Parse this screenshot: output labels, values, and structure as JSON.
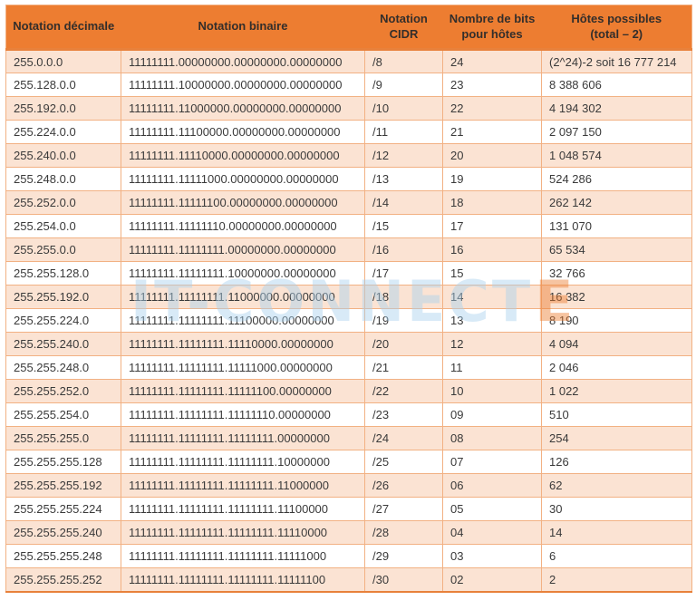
{
  "colors": {
    "header_bg": "#ED7D31",
    "header_text": "#332E2B",
    "cell_text": "#3A3A3A",
    "alt_row_bg": "#FBE3D3",
    "grid_line": "#F2B183",
    "frame_line": "#E8813B",
    "watermark_blue": "#A9D2EE",
    "watermark_orange": "#ED7D31"
  },
  "watermark": {
    "text": "IT-CONNECT",
    "logo_glyph": "E"
  },
  "table": {
    "headers": [
      "Notation décimale",
      "Notation binaire",
      "Notation\nCIDR",
      "Nombre de bits\npour hôtes",
      "Hôtes possibles\n(total – 2)"
    ],
    "rows": [
      [
        "255.0.0.0",
        "11111111.00000000.00000000.00000000",
        "/8",
        "24",
        "(2^24)-2 soit 16 777 214"
      ],
      [
        "255.128.0.0",
        "11111111.10000000.00000000.00000000",
        "/9",
        "23",
        "8 388 606"
      ],
      [
        "255.192.0.0",
        "11111111.11000000.00000000.00000000",
        "/10",
        "22",
        "4 194 302"
      ],
      [
        "255.224.0.0",
        "11111111.11100000.00000000.00000000",
        "/11",
        "21",
        "2 097 150"
      ],
      [
        "255.240.0.0",
        "11111111.11110000.00000000.00000000",
        "/12",
        "20",
        "1 048 574"
      ],
      [
        "255.248.0.0",
        "11111111.11111000.00000000.00000000",
        "/13",
        "19",
        "524 286"
      ],
      [
        "255.252.0.0",
        "11111111.11111100.00000000.00000000",
        "/14",
        "18",
        "262 142"
      ],
      [
        "255.254.0.0",
        "11111111.11111110.00000000.00000000",
        "/15",
        "17",
        "131 070"
      ],
      [
        "255.255.0.0",
        "11111111.11111111.00000000.00000000",
        "/16",
        "16",
        "65 534"
      ],
      [
        "255.255.128.0",
        "11111111.11111111.10000000.00000000",
        "/17",
        "15",
        "32 766"
      ],
      [
        "255.255.192.0",
        "11111111.11111111.11000000.00000000",
        "/18",
        "14",
        "16 382"
      ],
      [
        "255.255.224.0",
        "11111111.11111111.11100000.00000000",
        "/19",
        "13",
        "8 190"
      ],
      [
        "255.255.240.0",
        "11111111.11111111.11110000.00000000",
        "/20",
        "12",
        "4 094"
      ],
      [
        "255.255.248.0",
        "11111111.11111111.11111000.00000000",
        "/21",
        "11",
        "2 046"
      ],
      [
        "255.255.252.0",
        "11111111.11111111.11111100.00000000",
        "/22",
        "10",
        "1 022"
      ],
      [
        "255.255.254.0",
        "11111111.11111111.11111110.00000000",
        "/23",
        "09",
        "510"
      ],
      [
        "255.255.255.0",
        "11111111.11111111.11111111.00000000",
        "/24",
        "08",
        "254"
      ],
      [
        "255.255.255.128",
        "11111111.11111111.11111111.10000000",
        "/25",
        "07",
        "126"
      ],
      [
        "255.255.255.192",
        "11111111.11111111.11111111.11000000",
        "/26",
        "06",
        "62"
      ],
      [
        "255.255.255.224",
        "11111111.11111111.11111111.11100000",
        "/27",
        "05",
        "30"
      ],
      [
        "255.255.255.240",
        "11111111.11111111.11111111.11110000",
        "/28",
        "04",
        "14"
      ],
      [
        "255.255.255.248",
        "11111111.11111111.11111111.11111000",
        "/29",
        "03",
        "6"
      ],
      [
        "255.255.255.252",
        "11111111.11111111.11111111.11111100",
        "/30",
        "02",
        "2"
      ]
    ]
  }
}
